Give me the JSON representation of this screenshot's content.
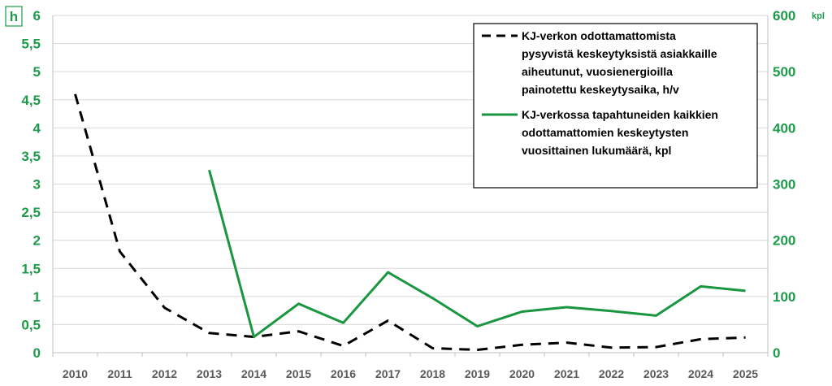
{
  "chart_data": {
    "type": "line",
    "x_label": "",
    "categories": [
      "2010",
      "2011",
      "2012",
      "2013",
      "2014",
      "2015",
      "2016",
      "2017",
      "2018",
      "2019",
      "2020",
      "2021",
      "2022",
      "2023",
      "2024",
      "2025"
    ],
    "y_left": {
      "unit": "h",
      "range": [
        0,
        6
      ],
      "ticks": [
        "0",
        "0,5",
        "1",
        "1,5",
        "2",
        "2,5",
        "3",
        "3,5",
        "4",
        "4,5",
        "5",
        "5,5",
        "6"
      ]
    },
    "y_right": {
      "unit": "kpl",
      "range": [
        0,
        600
      ],
      "ticks": [
        "0",
        "100",
        "200",
        "300",
        "400",
        "500",
        "600"
      ]
    },
    "grid": "horizontal",
    "legend_position": "top-right",
    "series": [
      {
        "name": "KJ-verkon odottamattomista pysyvistä keskeytyksistä asiakkaille aiheutunut, vuosienergioilla painotettu keskeytysaika, h/v",
        "legend_lines": [
          "KJ-verkon odottamattomista",
          "pysyvistä keskeytyksistä asiakkaille",
          "aiheutunut, vuosienergioilla",
          "painotettu keskeytysaika, h/v"
        ],
        "axis": "left",
        "style": "dashed",
        "color": "#000000",
        "values": [
          4.6,
          1.8,
          0.8,
          0.35,
          0.28,
          0.38,
          0.12,
          0.57,
          0.08,
          0.05,
          0.14,
          0.18,
          0.09,
          0.1,
          0.24,
          0.27
        ]
      },
      {
        "name": "KJ-verkossa tapahtuneiden kaikkien odottamattomien keskeytysten vuosittainen lukumäärä, kpl",
        "legend_lines": [
          "KJ-verkossa tapahtuneiden kaikkien",
          "odottamattomien keskeytysten",
          "vuosittainen lukumäärä, kpl"
        ],
        "axis": "right",
        "style": "solid",
        "color": "#1a9641",
        "values": [
          null,
          null,
          null,
          325,
          28,
          87,
          53,
          143,
          97,
          47,
          73,
          81,
          74,
          66,
          118,
          110
        ]
      }
    ]
  }
}
